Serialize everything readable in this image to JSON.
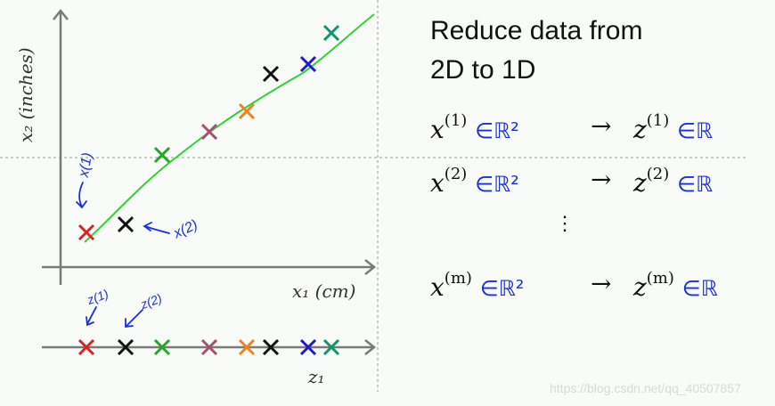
{
  "title_lines": [
    "Reduce data from",
    "2D to 1D"
  ],
  "plot": {
    "y_axis_label": "x₂ (inches)",
    "x_axis_label": "x₁ (cm)",
    "z_axis_label": "z₁",
    "point_colors": [
      "#d42424",
      "#111111",
      "#22a822",
      "#a4506e",
      "#f0821e",
      "#111111",
      "#1a1ad0",
      "#11936c"
    ],
    "fit_line_color": "#2ed42e",
    "annotation_color": "#1a2fe0",
    "annotations": {
      "x1": "x(1)",
      "x2": "x(2)",
      "z1": "z(1)",
      "z2": "z(2)"
    }
  },
  "mappings": [
    {
      "lhs": "x",
      "index": "(1)",
      "set_lhs": "∈ℝ²",
      "arrow": "→",
      "rhs": "z",
      "set_rhs": "∈ℝ"
    },
    {
      "lhs": "x",
      "index": "(2)",
      "set_lhs": "∈ℝ²",
      "arrow": "→",
      "rhs": "z",
      "set_rhs": "∈ℝ"
    },
    {
      "lhs": "x",
      "index": "(m)",
      "set_lhs": "∈ℝ²",
      "arrow": "→",
      "rhs": "z",
      "set_rhs": "∈ℝ"
    }
  ],
  "ellipsis": "⋮",
  "watermark": "https://blog.csdn.net/qq_40507857"
}
